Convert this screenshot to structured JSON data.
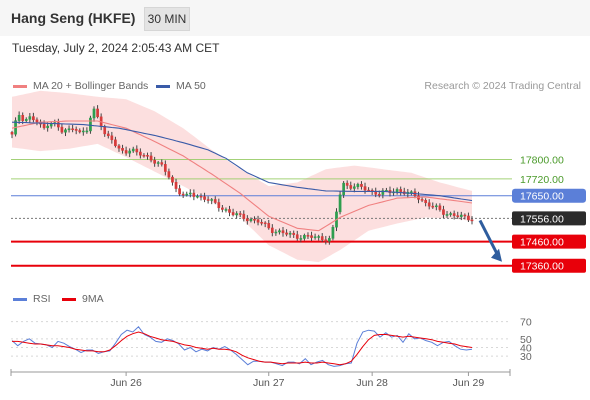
{
  "header": {
    "title": "Hang Seng (HKFE)",
    "timeframe": "30 MIN",
    "datetime": "Tuesday, July 2, 2024 2:05:43 AM CET"
  },
  "legend": {
    "bollinger": "MA 20 + Bollinger Bands",
    "ma50": "MA 50",
    "credit": "Research © 2024 Trading Central",
    "rsi": "RSI",
    "rsi_ma": "9MA"
  },
  "colors": {
    "bollinger_band": "#fbd9d9",
    "ma20": "#f08080",
    "ma50": "#3a5ba8",
    "candle_up": "#2e9e4f",
    "candle_down": "#d63b3b",
    "resistance": "#9acd6a",
    "pivot": "#5b7fd8",
    "support": "#e8000a",
    "price": "#2b2b2b",
    "rsi": "#5b7fd8",
    "rsi_ma": "#e8000a",
    "arrow": "#2f5d9e"
  },
  "chart_data": [
    {
      "type": "candlestick",
      "title": "Hang Seng (HKFE)",
      "ylim": [
        17280,
        18080
      ],
      "x_ticks": [
        "Jun 26",
        "Jun 27",
        "Jun 28",
        "Jun 29"
      ],
      "levels": [
        {
          "label": "17800.00",
          "value": 17800,
          "kind": "resistance"
        },
        {
          "label": "17720.00",
          "value": 17720,
          "kind": "resistance"
        },
        {
          "label": "17650.00",
          "value": 17650,
          "kind": "pivot"
        },
        {
          "label": "17556.00",
          "value": 17556,
          "kind": "price"
        },
        {
          "label": "17460.00",
          "value": 17460,
          "kind": "support"
        },
        {
          "label": "17360.00",
          "value": 17360,
          "kind": "support"
        }
      ],
      "segments": [
        {
          "start": 0,
          "n": 50,
          "y": [
            17900,
            17990,
            17965,
            17975,
            17955,
            17925,
            17960,
            17945,
            17915,
            17920,
            17940,
            17905,
            17920,
            18010,
            17970,
            17895,
            17880,
            17845,
            17835,
            17840,
            17825,
            17820,
            17810,
            17788,
            17770,
            17740,
            17690,
            17660,
            17645
          ]
        },
        {
          "start": 50,
          "n": 40,
          "y": [
            17660,
            17640,
            17610,
            17575,
            17558,
            17540,
            17505,
            17490,
            17480,
            17478,
            17470
          ]
        },
        {
          "start": 90,
          "n": 40,
          "y": [
            17510,
            17700,
            17690,
            17685,
            17670,
            17660,
            17665,
            17675,
            17660,
            17650,
            17620,
            17600,
            17580,
            17570,
            17560,
            17556
          ]
        }
      ],
      "ma20": [
        [
          0,
          17930
        ],
        [
          8,
          17955
        ],
        [
          16,
          17960
        ],
        [
          24,
          17960
        ],
        [
          32,
          17930
        ],
        [
          40,
          17875
        ],
        [
          48,
          17815
        ],
        [
          56,
          17740
        ],
        [
          64,
          17660
        ],
        [
          72,
          17565
        ],
        [
          80,
          17515
        ],
        [
          86,
          17505
        ],
        [
          92,
          17560
        ],
        [
          100,
          17610
        ],
        [
          108,
          17640
        ],
        [
          116,
          17645
        ],
        [
          124,
          17630
        ],
        [
          129,
          17620
        ]
      ],
      "ma50": [
        [
          0,
          17955
        ],
        [
          10,
          17950
        ],
        [
          20,
          17945
        ],
        [
          30,
          17930
        ],
        [
          40,
          17900
        ],
        [
          48,
          17870
        ],
        [
          55,
          17840
        ],
        [
          60,
          17805
        ],
        [
          66,
          17745
        ],
        [
          72,
          17705
        ],
        [
          80,
          17685
        ],
        [
          88,
          17670
        ],
        [
          96,
          17668
        ],
        [
          104,
          17668
        ],
        [
          112,
          17660
        ],
        [
          120,
          17650
        ],
        [
          129,
          17630
        ]
      ],
      "band_upper": [
        [
          0,
          18060
        ],
        [
          8,
          18085
        ],
        [
          16,
          18075
        ],
        [
          24,
          18060
        ],
        [
          32,
          18050
        ],
        [
          40,
          18000
        ],
        [
          48,
          17930
        ],
        [
          56,
          17840
        ],
        [
          64,
          17760
        ],
        [
          72,
          17690
        ],
        [
          80,
          17705
        ],
        [
          88,
          17760
        ],
        [
          96,
          17775
        ],
        [
          104,
          17760
        ],
        [
          112,
          17745
        ],
        [
          120,
          17705
        ],
        [
          129,
          17670
        ]
      ],
      "band_lower": [
        [
          0,
          17850
        ],
        [
          8,
          17835
        ],
        [
          16,
          17845
        ],
        [
          24,
          17865
        ],
        [
          32,
          17810
        ],
        [
          40,
          17750
        ],
        [
          48,
          17690
        ],
        [
          56,
          17625
        ],
        [
          64,
          17560
        ],
        [
          72,
          17445
        ],
        [
          80,
          17385
        ],
        [
          86,
          17375
        ],
        [
          92,
          17425
        ],
        [
          100,
          17505
        ],
        [
          108,
          17535
        ],
        [
          116,
          17560
        ],
        [
          124,
          17555
        ],
        [
          129,
          17545
        ]
      ]
    },
    {
      "type": "line",
      "ylim": [
        15,
        80
      ],
      "yticks": [
        "70",
        "50",
        "40",
        "30"
      ],
      "series": [
        {
          "name": "RSI",
          "values": [
            48,
            42,
            47,
            50,
            45,
            44,
            43,
            40,
            47,
            45,
            41,
            38,
            34,
            37,
            37,
            33,
            35,
            36,
            45,
            55,
            60,
            58,
            64,
            55,
            52,
            47,
            46,
            50,
            48,
            44,
            37,
            40,
            35,
            38,
            36,
            40,
            38,
            41,
            37,
            32,
            26,
            20,
            24,
            24,
            23,
            23,
            21,
            19,
            23,
            23,
            21,
            27,
            20,
            23,
            25,
            20,
            18,
            19,
            21,
            22,
            45,
            58,
            60,
            59,
            52,
            57,
            52,
            54,
            46,
            56,
            50,
            51,
            48,
            46,
            42,
            46,
            47,
            42,
            38,
            37,
            38
          ]
        },
        {
          "name": "9MA",
          "values": [
            47,
            47,
            46,
            45,
            44,
            44,
            43,
            42,
            42,
            41,
            40,
            38,
            37,
            36,
            36,
            35,
            35,
            37,
            42,
            48,
            53,
            56,
            58,
            56,
            53,
            51,
            49,
            48,
            47,
            45,
            43,
            42,
            40,
            39,
            38,
            39,
            38,
            38,
            37,
            35,
            31,
            28,
            26,
            24,
            23,
            23,
            22,
            21,
            22,
            22,
            22,
            23,
            22,
            22,
            23,
            22,
            21,
            20,
            21,
            24,
            32,
            41,
            49,
            54,
            55,
            55,
            54,
            53,
            52,
            53,
            52,
            51,
            50,
            49,
            47,
            46,
            45,
            44,
            42,
            41,
            40
          ]
        }
      ]
    }
  ]
}
